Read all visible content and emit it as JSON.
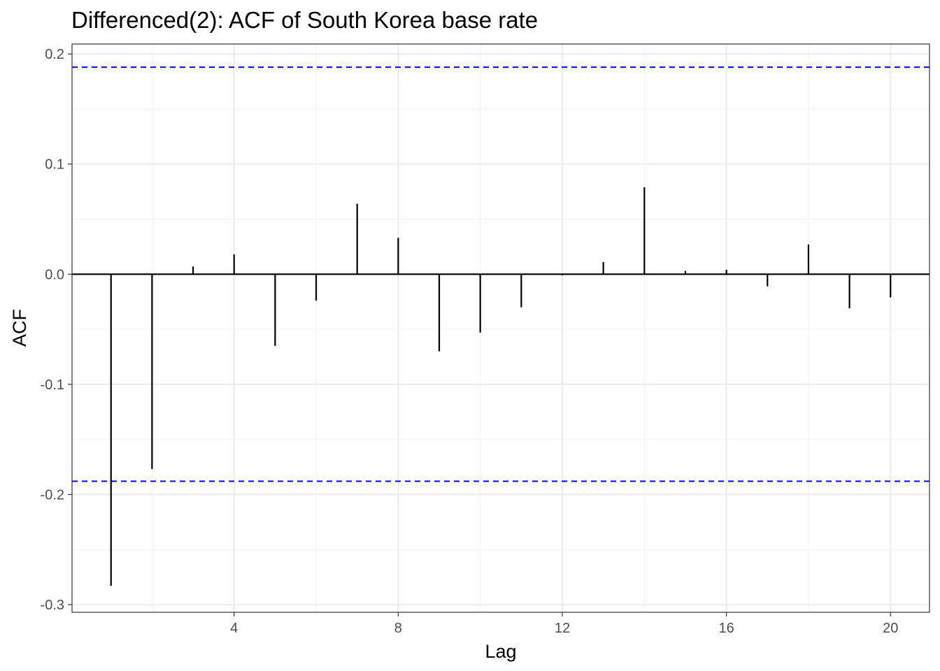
{
  "chart_data": {
    "type": "bar",
    "subtype": "acf",
    "title": "Differenced(2): ACF of South Korea base rate",
    "xlabel": "Lag",
    "ylabel": "ACF",
    "x": [
      1,
      2,
      3,
      4,
      5,
      6,
      7,
      8,
      9,
      10,
      11,
      12,
      13,
      14,
      15,
      16,
      17,
      18,
      19,
      20
    ],
    "values": [
      -0.283,
      -0.177,
      0.007,
      0.018,
      -0.065,
      -0.024,
      0.064,
      0.033,
      -0.07,
      -0.053,
      -0.03,
      -0.001,
      0.011,
      0.079,
      0.003,
      0.004,
      -0.011,
      0.027,
      -0.031,
      -0.021
    ],
    "confidence_bounds": [
      0.188,
      -0.188
    ],
    "xlim": [
      0.05,
      20.95
    ],
    "ylim": [
      -0.307,
      0.209
    ],
    "xticks": [
      4,
      8,
      12,
      16,
      20
    ],
    "xtick_labels": [
      "4",
      "8",
      "12",
      "16",
      "20"
    ],
    "yticks": [
      -0.3,
      -0.2,
      -0.1,
      0.0,
      0.1,
      0.2
    ],
    "ytick_labels": [
      "-0.3",
      "-0.2",
      "-0.1",
      "0.0",
      "0.1",
      "0.2"
    ],
    "grid": true,
    "legend": "none",
    "colors": {
      "bars": "#000000",
      "confidence": "#0000ff",
      "grid_major": "#ebebeb",
      "grid_minor": "#f2f2f2",
      "panel_border": "#333333",
      "tick_text": "#4d4d4d"
    }
  }
}
